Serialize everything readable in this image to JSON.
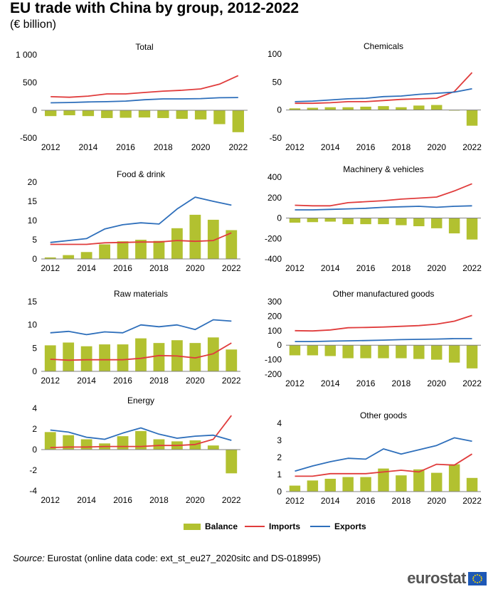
{
  "header": {
    "title": "EU trade with China by group, 2012-2022",
    "subtitle": "(€ billion)"
  },
  "legend": {
    "balance": "Balance",
    "imports": "Imports",
    "exports": "Exports"
  },
  "footer": {
    "source_label": "Source:",
    "source_text": "Eurostat (online data code: ext_st_eu27_2020sitc and DS-018995)",
    "logo_text": "eurostat"
  },
  "colors": {
    "balance": "#b2c130",
    "imports": "#e03c3c",
    "exports": "#2e6fbb",
    "axis": "#808080"
  },
  "chart_data": [
    {
      "type": "bar+line",
      "title": "Total",
      "x": [
        2012,
        2013,
        2014,
        2015,
        2016,
        2017,
        2018,
        2019,
        2020,
        2021,
        2022
      ],
      "xtick_labels": [
        "2012",
        "2014",
        "2016",
        "2018",
        "2020",
        "2022"
      ],
      "ylim": [
        -500,
        1000
      ],
      "yticks": [
        -500,
        0,
        500,
        1000
      ],
      "ytick_labels": [
        "-500",
        "0",
        "500",
        "1 000"
      ],
      "series": [
        {
          "name": "Balance",
          "kind": "bar",
          "values": [
            -105,
            -90,
            -105,
            -140,
            -135,
            -130,
            -140,
            -155,
            -165,
            -250,
            -395
          ]
        },
        {
          "name": "Imports",
          "kind": "line",
          "values": [
            245,
            235,
            255,
            295,
            295,
            320,
            345,
            360,
            385,
            470,
            625
          ]
        },
        {
          "name": "Exports",
          "kind": "line",
          "values": [
            135,
            140,
            150,
            155,
            165,
            190,
            205,
            205,
            210,
            225,
            230
          ]
        }
      ]
    },
    {
      "type": "bar+line",
      "title": "Chemicals",
      "x": [
        2012,
        2013,
        2014,
        2015,
        2016,
        2017,
        2018,
        2019,
        2020,
        2021,
        2022
      ],
      "xtick_labels": [
        "2012",
        "2014",
        "2016",
        "2018",
        "2020",
        "2022"
      ],
      "ylim": [
        -50,
        100
      ],
      "yticks": [
        -50,
        0,
        50,
        100
      ],
      "ytick_labels": [
        "-50",
        "0",
        "50",
        "100"
      ],
      "series": [
        {
          "name": "Balance",
          "kind": "bar",
          "values": [
            3,
            4,
            5,
            5,
            6,
            7,
            5,
            8,
            9,
            -1,
            -28
          ]
        },
        {
          "name": "Imports",
          "kind": "line",
          "values": [
            12,
            12,
            13,
            15,
            15,
            17,
            19,
            20,
            21,
            33,
            67
          ]
        },
        {
          "name": "Exports",
          "kind": "line",
          "values": [
            15,
            16,
            18,
            20,
            21,
            24,
            25,
            28,
            30,
            32,
            38
          ]
        }
      ]
    },
    {
      "type": "bar+line",
      "title": "Food & drink",
      "x": [
        2012,
        2013,
        2014,
        2015,
        2016,
        2017,
        2018,
        2019,
        2020,
        2021,
        2022
      ],
      "xtick_labels": [
        "2012",
        "2014",
        "2016",
        "2018",
        "2020",
        "2022"
      ],
      "ylim": [
        0,
        20
      ],
      "yticks": [
        0,
        5,
        10,
        15,
        20
      ],
      "ytick_labels": [
        "0",
        "5",
        "10",
        "15",
        "20"
      ],
      "series": [
        {
          "name": "Balance",
          "kind": "bar",
          "values": [
            0.4,
            1.0,
            1.8,
            3.8,
            4.6,
            5.0,
            4.7,
            8.0,
            11.5,
            10.2,
            7.5
          ]
        },
        {
          "name": "Imports",
          "kind": "line",
          "values": [
            3.8,
            3.8,
            3.8,
            4.2,
            4.3,
            4.4,
            4.4,
            4.8,
            4.6,
            4.8,
            6.8
          ]
        },
        {
          "name": "Exports",
          "kind": "line",
          "values": [
            4.3,
            4.8,
            5.3,
            7.8,
            8.9,
            9.4,
            9.1,
            13.0,
            16.1,
            15.0,
            14.0
          ]
        }
      ]
    },
    {
      "type": "bar+line",
      "title": "Machinery & vehicles",
      "x": [
        2012,
        2013,
        2014,
        2015,
        2016,
        2017,
        2018,
        2019,
        2020,
        2021,
        2022
      ],
      "xtick_labels": [
        "2012",
        "2014",
        "2016",
        "2018",
        "2020",
        "2022"
      ],
      "ylim": [
        -400,
        400
      ],
      "yticks": [
        -400,
        -200,
        0,
        200,
        400
      ],
      "ytick_labels": [
        "-400",
        "-200",
        "0",
        "200",
        "400"
      ],
      "series": [
        {
          "name": "Balance",
          "kind": "bar",
          "values": [
            -45,
            -40,
            -35,
            -60,
            -60,
            -60,
            -70,
            -80,
            -100,
            -150,
            -210
          ]
        },
        {
          "name": "Imports",
          "kind": "line",
          "values": [
            125,
            120,
            120,
            150,
            160,
            170,
            185,
            195,
            205,
            265,
            335
          ]
        },
        {
          "name": "Exports",
          "kind": "line",
          "values": [
            80,
            80,
            85,
            90,
            95,
            105,
            110,
            115,
            105,
            115,
            120
          ]
        }
      ]
    },
    {
      "type": "bar+line",
      "title": "Raw materials",
      "x": [
        2012,
        2013,
        2014,
        2015,
        2016,
        2017,
        2018,
        2019,
        2020,
        2021,
        2022
      ],
      "xtick_labels": [
        "2012",
        "2014",
        "2016",
        "2018",
        "2020",
        "2022"
      ],
      "ylim": [
        0,
        15
      ],
      "yticks": [
        0,
        5,
        10,
        15
      ],
      "ytick_labels": [
        "0",
        "5",
        "10",
        "15"
      ],
      "series": [
        {
          "name": "Balance",
          "kind": "bar",
          "values": [
            5.6,
            6.2,
            5.4,
            5.8,
            5.8,
            7.1,
            6.1,
            6.7,
            6.1,
            7.3,
            4.7
          ]
        },
        {
          "name": "Imports",
          "kind": "line",
          "values": [
            2.6,
            2.4,
            2.5,
            2.5,
            2.5,
            2.8,
            3.4,
            3.3,
            2.9,
            3.8,
            6.1
          ]
        },
        {
          "name": "Exports",
          "kind": "line",
          "values": [
            8.3,
            8.6,
            7.9,
            8.5,
            8.3,
            10.0,
            9.6,
            10.0,
            9.0,
            11.1,
            10.8
          ]
        }
      ]
    },
    {
      "type": "bar+line",
      "title": "Other manufactured goods",
      "x": [
        2012,
        2013,
        2014,
        2015,
        2016,
        2017,
        2018,
        2019,
        2020,
        2021,
        2022
      ],
      "xtick_labels": [
        "2012",
        "2014",
        "2016",
        "2018",
        "2020",
        "2022"
      ],
      "ylim": [
        -200,
        300
      ],
      "yticks": [
        -200,
        -100,
        0,
        100,
        200,
        300
      ],
      "ytick_labels": [
        "-200",
        "-100",
        "0",
        "100",
        "200",
        "300"
      ],
      "series": [
        {
          "name": "Balance",
          "kind": "bar",
          "values": [
            -70,
            -70,
            -75,
            -90,
            -90,
            -90,
            -90,
            -95,
            -100,
            -120,
            -160
          ]
        },
        {
          "name": "Imports",
          "kind": "line",
          "values": [
            100,
            98,
            105,
            120,
            122,
            125,
            130,
            135,
            145,
            165,
            205
          ]
        },
        {
          "name": "Exports",
          "kind": "line",
          "values": [
            25,
            25,
            28,
            30,
            32,
            35,
            38,
            40,
            42,
            45,
            45
          ]
        }
      ]
    },
    {
      "type": "bar+line",
      "title": "Energy",
      "x": [
        2012,
        2013,
        2014,
        2015,
        2016,
        2017,
        2018,
        2019,
        2020,
        2021,
        2022
      ],
      "xtick_labels": [
        "2012",
        "2014",
        "2016",
        "2018",
        "2020",
        "2022"
      ],
      "ylim": [
        -4,
        4
      ],
      "yticks": [
        -4,
        -2,
        0,
        2,
        4
      ],
      "ytick_labels": [
        "-4",
        "-2",
        "0",
        "2",
        "4"
      ],
      "series": [
        {
          "name": "Balance",
          "kind": "bar",
          "values": [
            1.7,
            1.4,
            1.0,
            0.6,
            1.3,
            1.8,
            1.0,
            0.8,
            0.9,
            0.4,
            -2.3
          ]
        },
        {
          "name": "Imports",
          "kind": "line",
          "values": [
            0.2,
            0.25,
            0.25,
            0.3,
            0.3,
            0.3,
            0.4,
            0.4,
            0.5,
            1.0,
            3.3
          ]
        },
        {
          "name": "Exports",
          "kind": "line",
          "values": [
            1.9,
            1.7,
            1.2,
            1.0,
            1.6,
            2.1,
            1.5,
            1.1,
            1.3,
            1.4,
            0.9
          ]
        }
      ]
    },
    {
      "type": "bar+line",
      "title": "Other goods",
      "x": [
        2012,
        2013,
        2014,
        2015,
        2016,
        2017,
        2018,
        2019,
        2020,
        2021,
        2022
      ],
      "xtick_labels": [
        "2012",
        "2014",
        "2016",
        "2018",
        "2020",
        "2022"
      ],
      "ylim": [
        0,
        4
      ],
      "yticks": [
        0,
        1,
        2,
        3,
        4
      ],
      "ytick_labels": [
        "0",
        "1",
        "2",
        "3",
        "4"
      ],
      "series": [
        {
          "name": "Balance",
          "kind": "bar",
          "values": [
            0.35,
            0.65,
            0.75,
            0.85,
            0.85,
            1.35,
            0.95,
            1.3,
            1.1,
            1.6,
            0.8
          ]
        },
        {
          "name": "Imports",
          "kind": "line",
          "values": [
            0.9,
            0.9,
            1.05,
            1.05,
            1.05,
            1.15,
            1.25,
            1.15,
            1.6,
            1.55,
            2.2
          ]
        },
        {
          "name": "Exports",
          "kind": "line",
          "values": [
            1.2,
            1.5,
            1.75,
            1.95,
            1.9,
            2.5,
            2.2,
            2.45,
            2.7,
            3.15,
            2.95
          ]
        }
      ]
    }
  ]
}
